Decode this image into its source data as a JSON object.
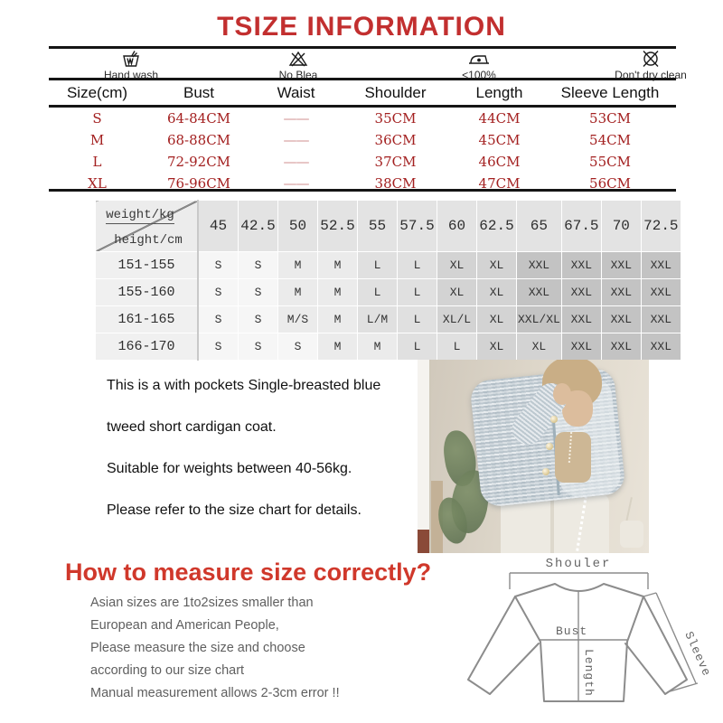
{
  "title": "TSIZE INFORMATION",
  "colors": {
    "accent_red": "#c22f2f",
    "value_red": "#a32020",
    "heading_red": "#d0382b"
  },
  "care": {
    "items": [
      {
        "icon": "hand-wash-icon",
        "label": "Hand wash"
      },
      {
        "icon": "no-bleach-icon",
        "label": "No Blea"
      },
      {
        "icon": "iron-icon",
        "label": "<100%"
      },
      {
        "icon": "no-dry-clean-icon",
        "label": "Don't dry clean"
      }
    ]
  },
  "size_table": {
    "headers": [
      "Size(cm)",
      "Bust",
      "Waist",
      "Shoulder",
      "Length",
      "Sleeve Length"
    ],
    "rows": [
      [
        "S",
        "64-84CM",
        "——",
        "35CM",
        "44CM",
        "53CM"
      ],
      [
        "M",
        "68-88CM",
        "——",
        "36CM",
        "45CM",
        "54CM"
      ],
      [
        "L",
        "72-92CM",
        "——",
        "37CM",
        "46CM",
        "55CM"
      ],
      [
        "XL",
        "76-96CM",
        "——",
        "38CM",
        "47CM",
        "56CM"
      ]
    ]
  },
  "fit_table": {
    "corner_top": "weight/kg",
    "corner_bottom": "height/cm",
    "weights": [
      "45",
      "42.5",
      "50",
      "52.5",
      "55",
      "57.5",
      "60",
      "62.5",
      "65",
      "67.5",
      "70",
      "72.5"
    ],
    "rows": [
      {
        "height": "151-155",
        "sizes": [
          "S",
          "S",
          "M",
          "M",
          "L",
          "L",
          "XL",
          "XL",
          "XXL",
          "XXL",
          "XXL",
          "XXL"
        ]
      },
      {
        "height": "155-160",
        "sizes": [
          "S",
          "S",
          "M",
          "M",
          "L",
          "L",
          "XL",
          "XL",
          "XXL",
          "XXL",
          "XXL",
          "XXL"
        ]
      },
      {
        "height": "161-165",
        "sizes": [
          "S",
          "S",
          "M/S",
          "M",
          "L/M",
          "L",
          "XL/L",
          "XL",
          "XXL/XL",
          "XXL",
          "XXL",
          "XXL"
        ]
      },
      {
        "height": "166-170",
        "sizes": [
          "S",
          "S",
          "S",
          "M",
          "M",
          "L",
          "L",
          "XL",
          "XL",
          "XXL",
          "XXL",
          "XXL"
        ]
      }
    ],
    "shade": {
      "S": "#f6f6f6",
      "M": "#ebebeb",
      "L": "#e0e0e0",
      "XL": "#d3d3d3",
      "XXL": "#c3c3c3"
    }
  },
  "description": {
    "lines": [
      "This is a with pockets Single-breasted blue",
      "tweed short cardigan coat.",
      "Suitable for weights between 40-56kg.",
      "Please refer to the size chart for details."
    ]
  },
  "measure": {
    "heading": "How to measure size correctly?",
    "lines": [
      "Asian sizes are 1to2sizes smaller than",
      "European and American People,",
      "Please measure the size and choose",
      "according to our size chart",
      "Manual measurement allows 2-3cm error !!"
    ]
  },
  "diagram": {
    "labels": {
      "shoulder": "Shouler",
      "bust": "Bust",
      "length": "Length",
      "sleeve": "Sleeve"
    }
  }
}
